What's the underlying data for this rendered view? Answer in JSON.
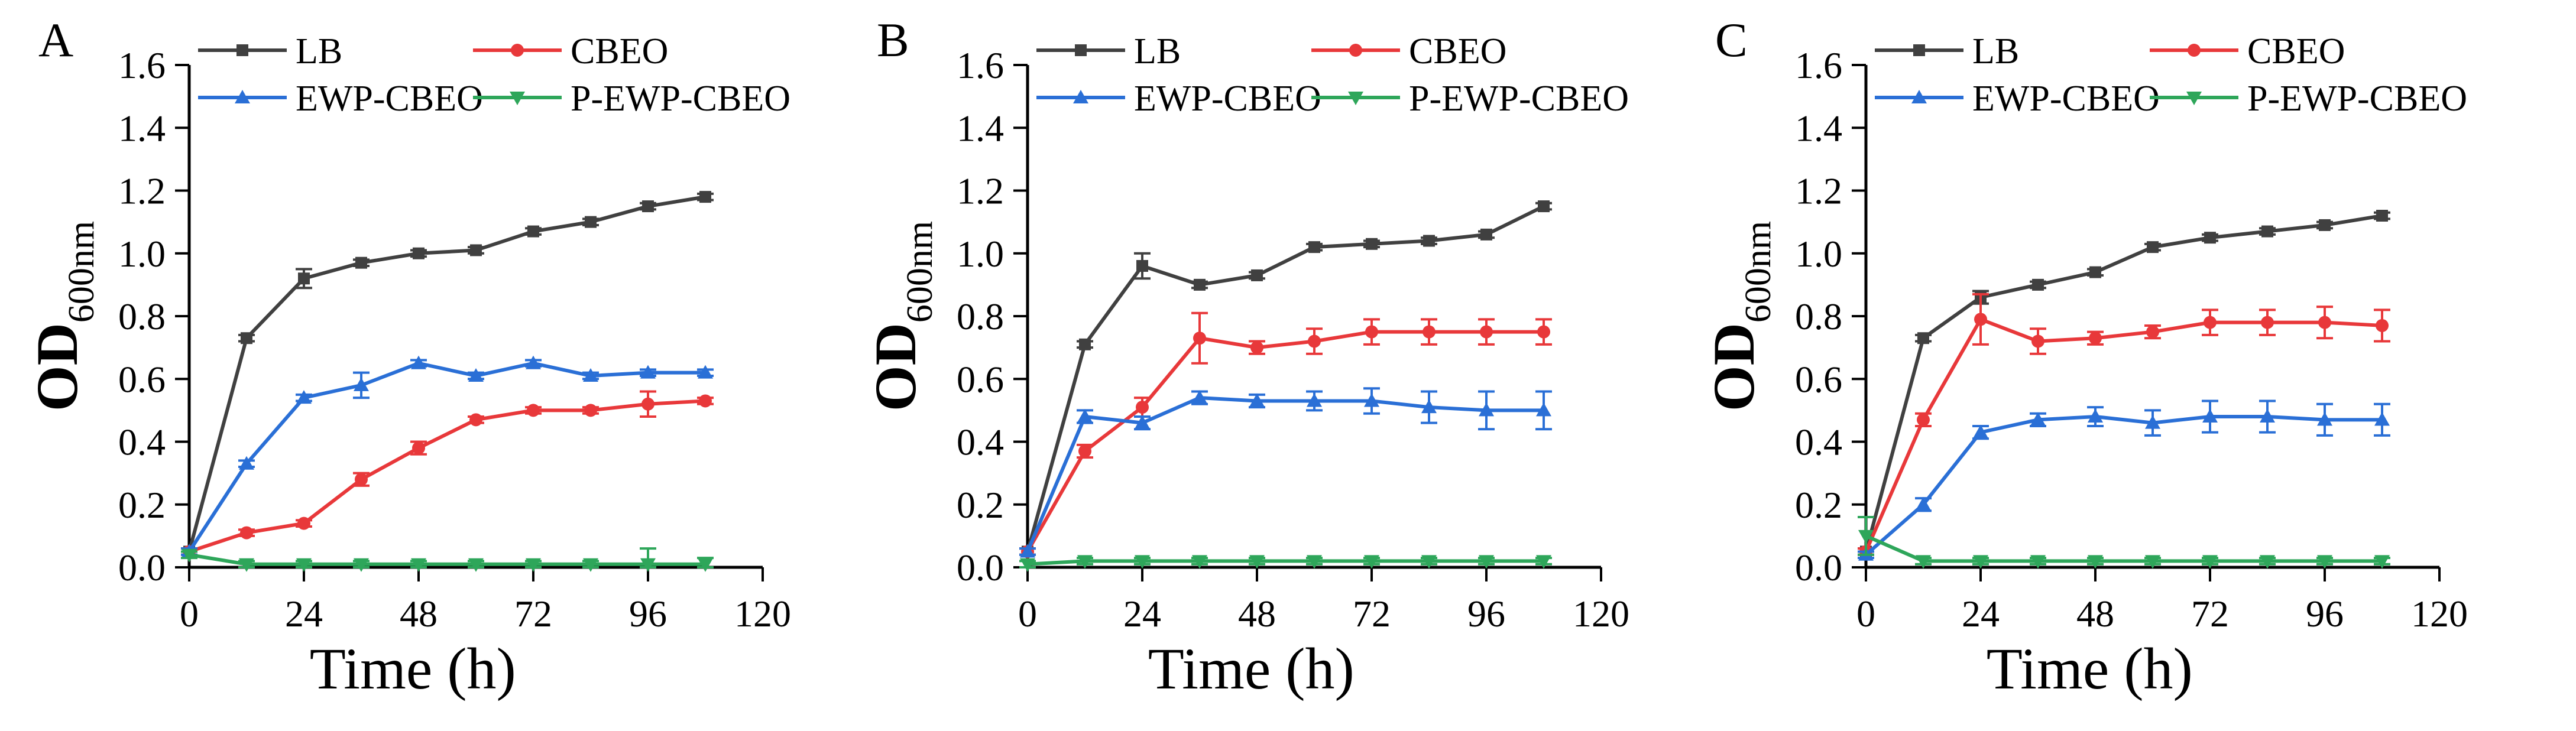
{
  "figure": {
    "panel_labels": [
      "A",
      "B",
      "C"
    ]
  },
  "colors": {
    "LB": "#404040",
    "CBEO": "#e8383a",
    "EWP-CBEO": "#2a6fd6",
    "P-EWP-CBEO": "#2ea65a",
    "axis": "#000000"
  },
  "chart_data": [
    {
      "panel": "A",
      "type": "line",
      "xlabel": "Time (h)",
      "ylabel": "OD",
      "ylabel_sub": "600nm",
      "xlim": [
        0,
        120
      ],
      "ylim": [
        0,
        1.6
      ],
      "xticks": [
        0,
        24,
        48,
        72,
        96,
        120
      ],
      "yticks": [
        0.0,
        0.2,
        0.4,
        0.6,
        0.8,
        1.0,
        1.2,
        1.4,
        1.6
      ],
      "ytick_labels": [
        "0.0",
        "0.2",
        "0.4",
        "0.6",
        "0.8",
        "1.0",
        "1.2",
        "1.4",
        "1.6"
      ],
      "x": [
        0,
        12,
        24,
        36,
        48,
        60,
        72,
        84,
        96,
        108
      ],
      "series": [
        {
          "name": "LB",
          "marker": "square",
          "values": [
            0.05,
            0.73,
            0.92,
            0.97,
            1.0,
            1.01,
            1.07,
            1.1,
            1.15,
            1.18
          ],
          "errors": [
            0.01,
            0.01,
            0.03,
            0.01,
            0.01,
            0.01,
            0.01,
            0.01,
            0.01,
            0.01
          ]
        },
        {
          "name": "CBEO",
          "marker": "circle",
          "values": [
            0.05,
            0.11,
            0.14,
            0.28,
            0.38,
            0.47,
            0.5,
            0.5,
            0.52,
            0.53
          ],
          "errors": [
            0.01,
            0.01,
            0.01,
            0.02,
            0.02,
            0.01,
            0.01,
            0.01,
            0.04,
            0.01
          ]
        },
        {
          "name": "EWP-CBEO",
          "marker": "triangle-up",
          "values": [
            0.05,
            0.33,
            0.54,
            0.58,
            0.65,
            0.61,
            0.65,
            0.61,
            0.62,
            0.62
          ],
          "errors": [
            0.01,
            0.01,
            0.01,
            0.04,
            0.01,
            0.01,
            0.01,
            0.01,
            0.01,
            0.01
          ]
        },
        {
          "name": "P-EWP-CBEO",
          "marker": "triangle-down",
          "values": [
            0.04,
            0.01,
            0.01,
            0.01,
            0.01,
            0.01,
            0.01,
            0.01,
            0.01,
            0.01
          ],
          "errors": [
            0.01,
            0.01,
            0.01,
            0.01,
            0.01,
            0.01,
            0.01,
            0.01,
            0.05,
            0.02
          ]
        }
      ]
    },
    {
      "panel": "B",
      "type": "line",
      "xlabel": "Time (h)",
      "ylabel": "OD",
      "ylabel_sub": "600nm",
      "xlim": [
        0,
        120
      ],
      "ylim": [
        0,
        1.6
      ],
      "xticks": [
        0,
        24,
        48,
        72,
        96,
        120
      ],
      "yticks": [
        0.0,
        0.2,
        0.4,
        0.6,
        0.8,
        1.0,
        1.2,
        1.4,
        1.6
      ],
      "ytick_labels": [
        "0.0",
        "0.2",
        "0.4",
        "0.6",
        "0.8",
        "1.0",
        "1.2",
        "1.4",
        "1.6"
      ],
      "x": [
        0,
        12,
        24,
        36,
        48,
        60,
        72,
        84,
        96,
        108
      ],
      "series": [
        {
          "name": "LB",
          "marker": "square",
          "values": [
            0.05,
            0.71,
            0.96,
            0.9,
            0.93,
            1.02,
            1.03,
            1.04,
            1.06,
            1.15
          ],
          "errors": [
            0.01,
            0.01,
            0.04,
            0.01,
            0.01,
            0.01,
            0.01,
            0.01,
            0.01,
            0.01
          ]
        },
        {
          "name": "CBEO",
          "marker": "circle",
          "values": [
            0.05,
            0.37,
            0.51,
            0.73,
            0.7,
            0.72,
            0.75,
            0.75,
            0.75,
            0.75
          ],
          "errors": [
            0.01,
            0.02,
            0.03,
            0.08,
            0.02,
            0.04,
            0.04,
            0.04,
            0.04,
            0.04
          ]
        },
        {
          "name": "EWP-CBEO",
          "marker": "triangle-up",
          "values": [
            0.05,
            0.48,
            0.46,
            0.54,
            0.53,
            0.53,
            0.53,
            0.51,
            0.5,
            0.5
          ],
          "errors": [
            0.01,
            0.02,
            0.02,
            0.02,
            0.02,
            0.03,
            0.04,
            0.05,
            0.06,
            0.06
          ]
        },
        {
          "name": "P-EWP-CBEO",
          "marker": "triangle-down",
          "values": [
            0.01,
            0.02,
            0.02,
            0.02,
            0.02,
            0.02,
            0.02,
            0.02,
            0.02,
            0.02
          ],
          "errors": [
            0.01,
            0.01,
            0.01,
            0.01,
            0.01,
            0.01,
            0.01,
            0.01,
            0.01,
            0.01
          ]
        }
      ]
    },
    {
      "panel": "C",
      "type": "line",
      "xlabel": "Time (h)",
      "ylabel": "OD",
      "ylabel_sub": "600nm",
      "xlim": [
        0,
        120
      ],
      "ylim": [
        0,
        1.6
      ],
      "xticks": [
        0,
        24,
        48,
        72,
        96,
        120
      ],
      "yticks": [
        0.0,
        0.2,
        0.4,
        0.6,
        0.8,
        1.0,
        1.2,
        1.4,
        1.6
      ],
      "ytick_labels": [
        "0.0",
        "0.2",
        "0.4",
        "0.6",
        "0.8",
        "1.0",
        "1.2",
        "1.4",
        "1.6"
      ],
      "x": [
        0,
        12,
        24,
        36,
        48,
        60,
        72,
        84,
        96,
        108
      ],
      "series": [
        {
          "name": "LB",
          "marker": "square",
          "values": [
            0.05,
            0.73,
            0.86,
            0.9,
            0.94,
            1.02,
            1.05,
            1.07,
            1.09,
            1.12
          ],
          "errors": [
            0.01,
            0.01,
            0.02,
            0.01,
            0.01,
            0.01,
            0.01,
            0.01,
            0.01,
            0.01
          ]
        },
        {
          "name": "CBEO",
          "marker": "circle",
          "values": [
            0.05,
            0.47,
            0.79,
            0.72,
            0.73,
            0.75,
            0.78,
            0.78,
            0.78,
            0.77
          ],
          "errors": [
            0.01,
            0.02,
            0.08,
            0.04,
            0.02,
            0.02,
            0.04,
            0.04,
            0.05,
            0.05
          ]
        },
        {
          "name": "EWP-CBEO",
          "marker": "triangle-up",
          "values": [
            0.04,
            0.2,
            0.43,
            0.47,
            0.48,
            0.46,
            0.48,
            0.48,
            0.47,
            0.47
          ],
          "errors": [
            0.01,
            0.02,
            0.02,
            0.02,
            0.03,
            0.04,
            0.05,
            0.05,
            0.05,
            0.05
          ]
        },
        {
          "name": "P-EWP-CBEO",
          "marker": "triangle-down",
          "values": [
            0.1,
            0.02,
            0.02,
            0.02,
            0.02,
            0.02,
            0.02,
            0.02,
            0.02,
            0.02
          ],
          "errors": [
            0.06,
            0.01,
            0.01,
            0.01,
            0.01,
            0.01,
            0.01,
            0.01,
            0.01,
            0.01
          ]
        }
      ]
    }
  ]
}
